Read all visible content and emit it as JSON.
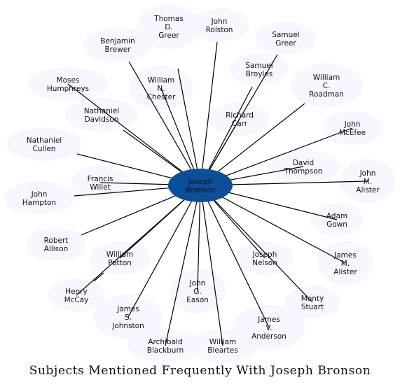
{
  "caption": "Subjects Mentioned Frequently With Joseph Bronson",
  "colors": {
    "center_fill": "#0b4e9a",
    "node_fill": "#f5f8fe",
    "edge": "#000000"
  },
  "center": {
    "label": "Joseph\nBronson"
  },
  "nodes": [
    {
      "id": "thomas-d-greer",
      "label": "Thomas\nD.\nGreer"
    },
    {
      "id": "john-rolston",
      "label": "John\nRolston"
    },
    {
      "id": "samuel-greer",
      "label": "Samuel\nGreer"
    },
    {
      "id": "benjamin-brewer",
      "label": "Benjamin\nBrewer"
    },
    {
      "id": "samuel-broyles",
      "label": "Samuel\nBroyles"
    },
    {
      "id": "moses-humphreys",
      "label": "Moses\nHumphreys"
    },
    {
      "id": "william-n-chester",
      "label": "William\nN.\nChester"
    },
    {
      "id": "william-c-roadman",
      "label": "William\nC.\nRoadman"
    },
    {
      "id": "nathaniel-davidson",
      "label": "Nathaniel\nDavidson"
    },
    {
      "id": "richard-carr",
      "label": "Richard\nCarr"
    },
    {
      "id": "john-mcefee",
      "label": "John\nMcEfee"
    },
    {
      "id": "nathaniel-cullen",
      "label": "Nathaniel\nCullen"
    },
    {
      "id": "david-thompson",
      "label": "David\nThompson"
    },
    {
      "id": "francis-willet",
      "label": "Francis\nWillet"
    },
    {
      "id": "john-m-alister",
      "label": "John\nM.\nAlister"
    },
    {
      "id": "john-hampton",
      "label": "John\nHampton"
    },
    {
      "id": "adam-gown",
      "label": "Adam\nGown"
    },
    {
      "id": "robert-allison",
      "label": "Robert\nAllison"
    },
    {
      "id": "joseph-nelson",
      "label": "Joseph\nNelson"
    },
    {
      "id": "william-patton",
      "label": "William\nPatton"
    },
    {
      "id": "james-m-alister",
      "label": "James\nM.\nAlister"
    },
    {
      "id": "john-g-eason",
      "label": "John\nG.\nEason"
    },
    {
      "id": "henry-mccay",
      "label": "Henry\nMcCay"
    },
    {
      "id": "monty-stuart",
      "label": "Monty\nStuart"
    },
    {
      "id": "james-s-johnston",
      "label": "James\nS.\nJohnston"
    },
    {
      "id": "james-v-anderson",
      "label": "James\nV.\nAnderson"
    },
    {
      "id": "archibald-blackburn",
      "label": "Archibald\nBlackburn"
    },
    {
      "id": "william-bleartes",
      "label": "William\nBleartes"
    }
  ]
}
